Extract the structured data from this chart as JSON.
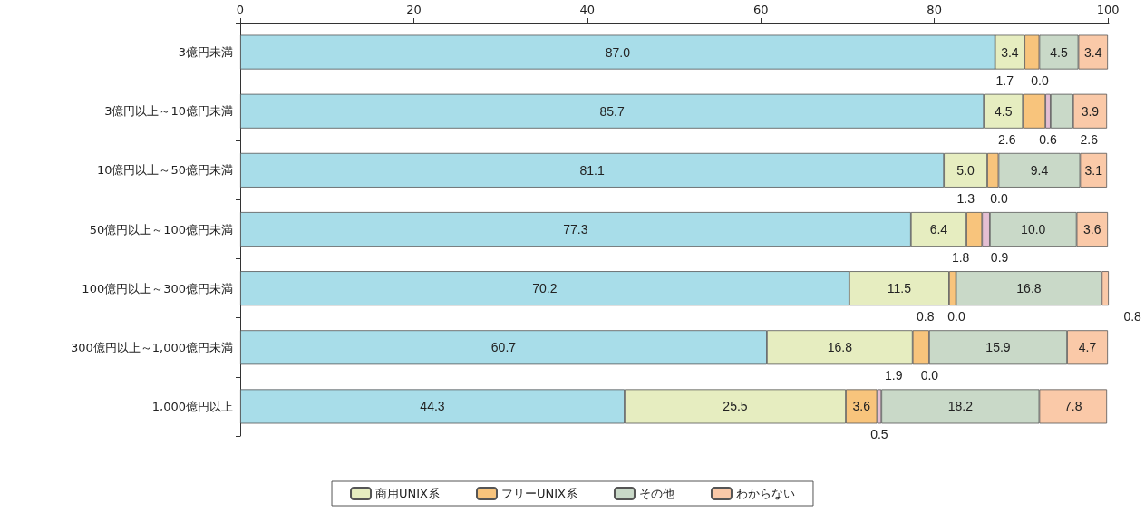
{
  "chart_data": {
    "type": "bar",
    "orientation": "horizontal",
    "stacked": true,
    "grid": false,
    "legend": "bottom",
    "categories": [
      "3億円未満",
      "3億円以上～10億円未満",
      "10億円以上～50億円未満",
      "50億円以上～100億円未満",
      "100億円以上～300億円未満",
      "300億円以上～1,000億円未満",
      "1,000億円以上"
    ],
    "xlim": [
      0,
      100.1
    ],
    "xticks": [
      0,
      20,
      40,
      60,
      80,
      100
    ],
    "series": [
      {
        "color": "#a8dde9",
        "values": [
          87.0,
          85.7,
          81.1,
          77.3,
          70.2,
          60.7,
          44.3
        ],
        "value_labels": [
          "87.0",
          "85.7",
          "81.1",
          "77.3",
          "70.2",
          "60.7",
          "44.3"
        ]
      },
      {
        "name": "商用UNIX系",
        "color": "#e6edc0",
        "values": [
          3.4,
          4.5,
          5.0,
          6.4,
          11.5,
          16.8,
          25.5
        ],
        "value_labels": [
          "3.4",
          "4.5",
          "5.0",
          "6.4",
          "11.5",
          "16.8",
          "25.5"
        ]
      },
      {
        "name": "フリーUNIX系",
        "color": "#f8c47c",
        "values": [
          1.7,
          2.6,
          1.3,
          1.8,
          0.8,
          1.9,
          3.6
        ],
        "value_labels": [
          "1.7",
          "2.6",
          "1.3",
          "1.8",
          "0.8",
          "1.9",
          "3.6"
        ]
      },
      {
        "color": "#e4bfd3",
        "values": [
          0.0,
          0.6,
          0.0,
          0.9,
          0.0,
          0.0,
          0.5
        ],
        "value_labels": [
          "0.0",
          "0.6",
          "0.0",
          "0.9",
          "0.0",
          "0.0",
          "0.5"
        ]
      },
      {
        "name": "その他",
        "color": "#c9d9c8",
        "values": [
          4.5,
          2.6,
          9.4,
          10.0,
          16.8,
          15.9,
          18.2
        ],
        "value_labels": [
          "4.5",
          "2.6",
          "9.4",
          "10.0",
          "16.8",
          "15.9",
          "18.2"
        ]
      },
      {
        "name": "わからない",
        "color": "#fac9a8",
        "values": [
          3.4,
          3.9,
          3.1,
          3.6,
          0.8,
          4.7,
          7.8
        ],
        "value_labels": [
          "3.4",
          "3.9",
          "3.1",
          "3.6",
          "0.8",
          "4.7",
          "7.8"
        ]
      }
    ]
  }
}
